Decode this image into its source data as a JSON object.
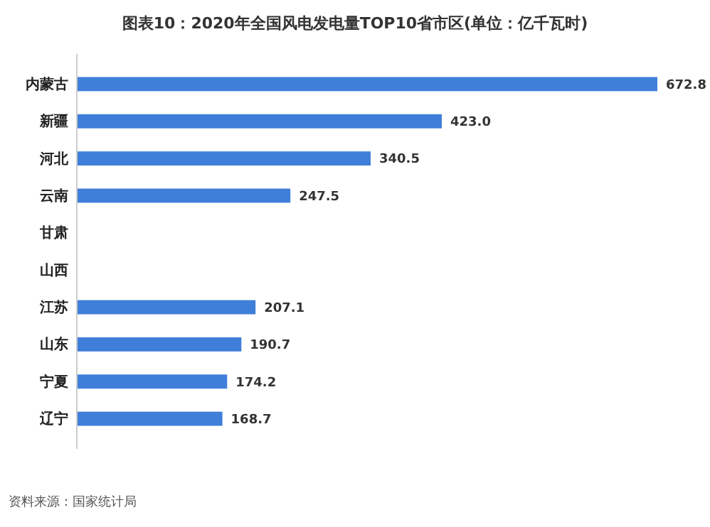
{
  "chart_data": {
    "type": "bar",
    "orientation": "horizontal",
    "title": "图表10：2020年全国风电发电量TOP10省市区(单位：亿千瓦时)",
    "categories": [
      "内蒙古",
      "新疆",
      "河北",
      "云南",
      "甘肃",
      "山西",
      "江苏",
      "山东",
      "宁夏",
      "辽宁"
    ],
    "values": [
      672.8,
      423.0,
      340.5,
      247.5,
      null,
      null,
      207.1,
      190.7,
      174.2,
      168.7
    ],
    "value_labels": [
      "672.8",
      "423.0",
      "340.5",
      "247.5",
      null,
      null,
      "207.1",
      "190.7",
      "174.2",
      "168.7"
    ],
    "color": "#3f7fd9",
    "tick_labels": "y",
    "annotations": [
      "资料来源：国家统计局"
    ]
  }
}
